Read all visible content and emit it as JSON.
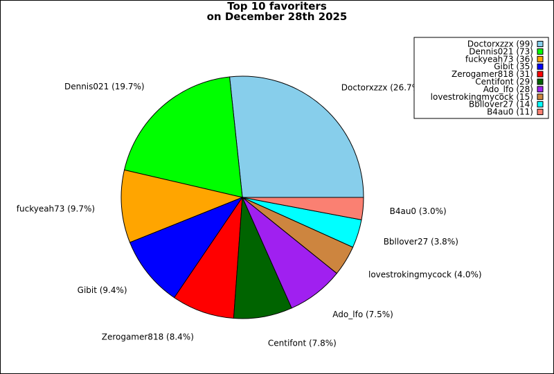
{
  "chart_data": {
    "type": "pie",
    "title_lines": [
      "Top 10 favoriters",
      "on December 28th 2025"
    ],
    "slices": [
      {
        "name": "Doctorxzzx",
        "value": 99,
        "percent": "26.7%",
        "color": "#87ceeb"
      },
      {
        "name": "Dennis021",
        "value": 73,
        "percent": "19.7%",
        "color": "#00ff00"
      },
      {
        "name": "fuckyeah73",
        "value": 36,
        "percent": "9.7%",
        "color": "#ffa500"
      },
      {
        "name": "Gibit",
        "value": 35,
        "percent": "9.4%",
        "color": "#0000ff"
      },
      {
        "name": "Zerogamer818",
        "value": 31,
        "percent": "8.4%",
        "color": "#ff0000"
      },
      {
        "name": "Centifont",
        "value": 29,
        "percent": "7.8%",
        "color": "#006400"
      },
      {
        "name": "Ado_lfo",
        "value": 28,
        "percent": "7.5%",
        "color": "#a020f0"
      },
      {
        "name": "lovestrokingmycock",
        "value": 15,
        "percent": "4.0%",
        "color": "#cd853f"
      },
      {
        "name": "Bbllover27",
        "value": 14,
        "percent": "3.8%",
        "color": "#00ffff"
      },
      {
        "name": "B4au0",
        "value": 11,
        "percent": "3.0%",
        "color": "#fa8072"
      }
    ],
    "legend_position": "top-right"
  }
}
